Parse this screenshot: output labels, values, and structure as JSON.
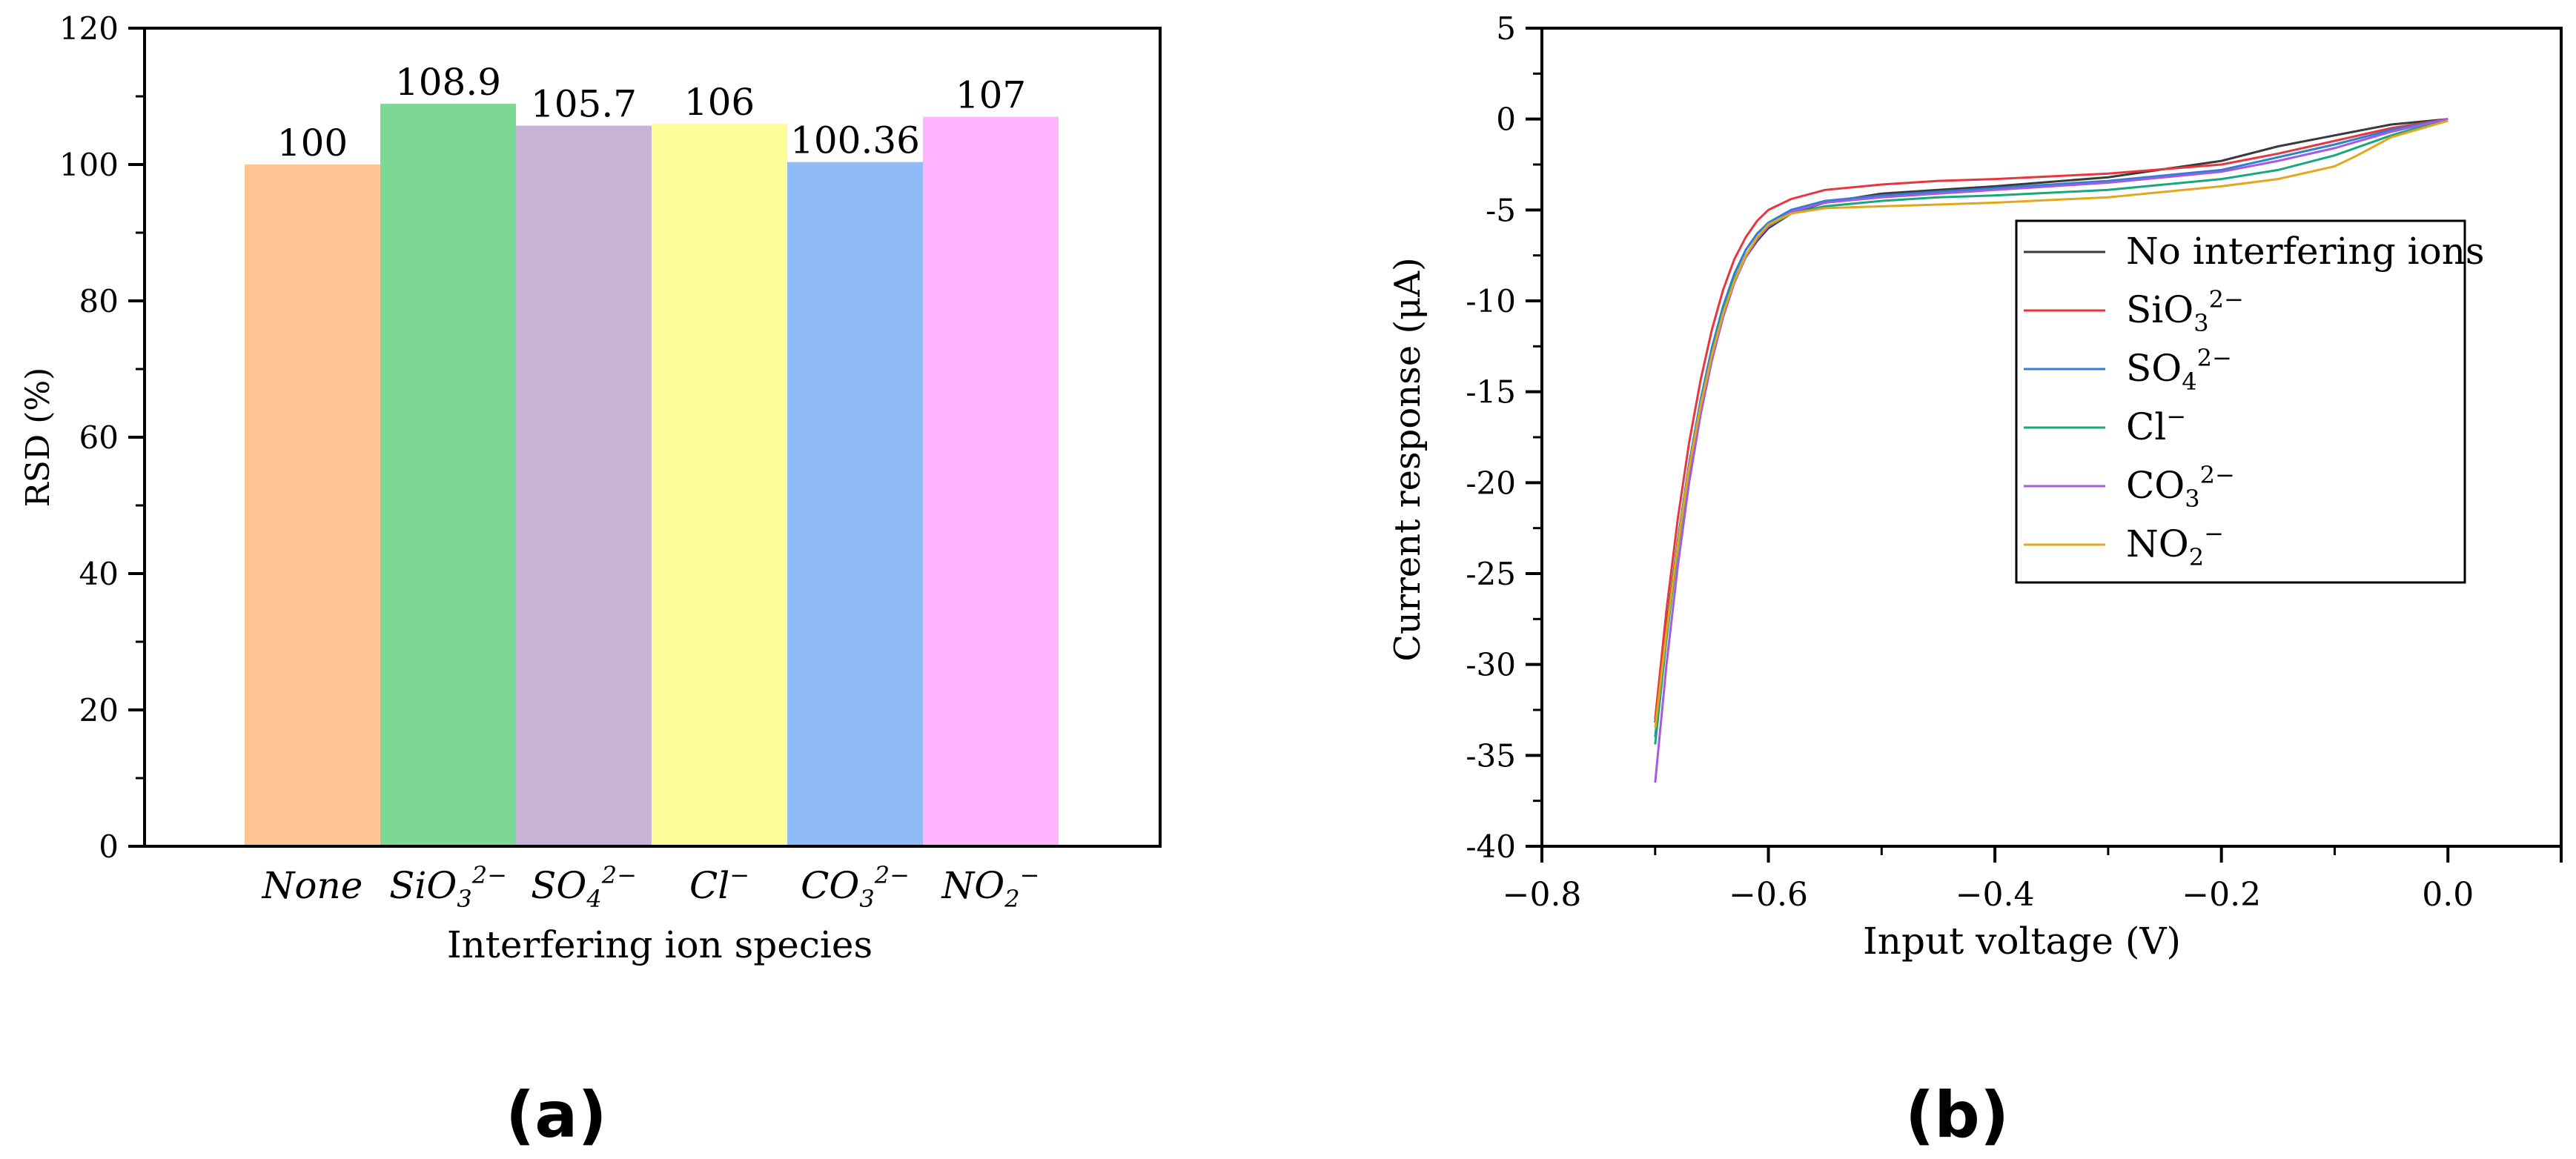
{
  "figure": {
    "panel_a_label": "(a)",
    "panel_b_label": "(b)"
  },
  "chart_data": [
    {
      "panel": "a",
      "type": "bar",
      "title": "",
      "xlabel": "Interfering ion species",
      "ylabel": "RSD (%)",
      "ylim": [
        0,
        120
      ],
      "yticks": [
        0,
        20,
        40,
        60,
        80,
        100,
        120
      ],
      "grid": false,
      "categories": [
        {
          "base": "None",
          "sub": "",
          "sup": ""
        },
        {
          "base": "SiO",
          "sub": "3",
          "sup": "2−"
        },
        {
          "base": "SO",
          "sub": "4",
          "sup": "2−"
        },
        {
          "base": "Cl",
          "sub": "",
          "sup": "−"
        },
        {
          "base": "CO",
          "sub": "3",
          "sup": "2−"
        },
        {
          "base": "NO",
          "sub": "2",
          "sup": "−"
        }
      ],
      "values": [
        100,
        108.9,
        105.7,
        106,
        100.36,
        107
      ],
      "value_labels": [
        "100",
        "108.9",
        "105.7",
        "106",
        "100.36",
        "107"
      ],
      "colors": [
        "#fec592",
        "#7dd895",
        "#c6b3d6",
        "#fefd99",
        "#8fbcf7",
        "#feb4fe"
      ]
    },
    {
      "panel": "b",
      "type": "line",
      "title": "",
      "xlabel": "Input voltage (V)",
      "ylabel": "Current response (μA)",
      "xlim": [
        -0.8,
        0.1
      ],
      "ylim": [
        -40,
        5
      ],
      "xticks": [
        -0.8,
        -0.6,
        -0.4,
        -0.2,
        0.0
      ],
      "xtick_labels": [
        "−0.8",
        "−0.6",
        "−0.4",
        "−0.2",
        "0.0"
      ],
      "yticks": [
        5,
        0,
        -5,
        -10,
        -15,
        -20,
        -25,
        -30,
        -35,
        -40
      ],
      "grid": false,
      "legend_position": "right",
      "series": [
        {
          "name": "No interfering ions",
          "base": "No interfering ions",
          "sub": "",
          "sup": "",
          "color": "#3a3a3a",
          "x": [
            -0.7,
            -0.69,
            -0.68,
            -0.67,
            -0.66,
            -0.65,
            -0.64,
            -0.63,
            -0.62,
            -0.61,
            -0.6,
            -0.58,
            -0.55,
            -0.5,
            -0.45,
            -0.4,
            -0.3,
            -0.2,
            -0.15,
            -0.1,
            -0.05,
            0.0
          ],
          "y": [
            -33.2,
            -28.0,
            -23.2,
            -19.0,
            -15.6,
            -12.8,
            -10.6,
            -8.9,
            -7.6,
            -6.7,
            -6.0,
            -5.2,
            -4.6,
            -4.1,
            -3.9,
            -3.7,
            -3.2,
            -2.3,
            -1.5,
            -0.9,
            -0.3,
            0.0
          ]
        },
        {
          "name": "SiO3 2−",
          "base": "SiO",
          "sub": "3",
          "sup": "2−",
          "color": "#e8363e",
          "x": [
            -0.7,
            -0.69,
            -0.68,
            -0.67,
            -0.66,
            -0.65,
            -0.64,
            -0.63,
            -0.62,
            -0.61,
            -0.6,
            -0.58,
            -0.55,
            -0.5,
            -0.45,
            -0.4,
            -0.3,
            -0.2,
            -0.15,
            -0.1,
            -0.05,
            0.0
          ],
          "y": [
            -33.0,
            -27.0,
            -22.0,
            -17.8,
            -14.4,
            -11.6,
            -9.4,
            -7.7,
            -6.5,
            -5.6,
            -5.0,
            -4.4,
            -3.9,
            -3.6,
            -3.4,
            -3.3,
            -3.0,
            -2.5,
            -1.9,
            -1.2,
            -0.5,
            0.0
          ]
        },
        {
          "name": "SO4 2−",
          "base": "SO",
          "sub": "4",
          "sup": "2−",
          "color": "#2c7fd2",
          "x": [
            -0.7,
            -0.69,
            -0.68,
            -0.67,
            -0.66,
            -0.65,
            -0.64,
            -0.63,
            -0.62,
            -0.61,
            -0.6,
            -0.58,
            -0.55,
            -0.5,
            -0.45,
            -0.4,
            -0.3,
            -0.2,
            -0.15,
            -0.1,
            -0.05,
            0.0
          ],
          "y": [
            -34.0,
            -28.3,
            -23.3,
            -19.0,
            -15.5,
            -12.6,
            -10.3,
            -8.5,
            -7.2,
            -6.3,
            -5.7,
            -5.0,
            -4.5,
            -4.2,
            -4.0,
            -3.8,
            -3.4,
            -2.8,
            -2.1,
            -1.4,
            -0.6,
            0.0
          ]
        },
        {
          "name": "Cl−",
          "base": "Cl",
          "sub": "",
          "sup": "−",
          "color": "#1aa77c",
          "x": [
            -0.7,
            -0.69,
            -0.68,
            -0.67,
            -0.66,
            -0.65,
            -0.64,
            -0.63,
            -0.62,
            -0.61,
            -0.6,
            -0.58,
            -0.55,
            -0.5,
            -0.45,
            -0.4,
            -0.3,
            -0.2,
            -0.15,
            -0.1,
            -0.05,
            0.0
          ],
          "y": [
            -34.4,
            -28.6,
            -23.6,
            -19.3,
            -15.8,
            -12.9,
            -10.6,
            -8.8,
            -7.5,
            -6.6,
            -5.9,
            -5.2,
            -4.8,
            -4.5,
            -4.3,
            -4.2,
            -3.9,
            -3.3,
            -2.8,
            -2.0,
            -0.9,
            0.0
          ]
        },
        {
          "name": "CO3 2−",
          "base": "CO",
          "sub": "3",
          "sup": "2−",
          "color": "#a45be0",
          "x": [
            -0.7,
            -0.69,
            -0.68,
            -0.67,
            -0.66,
            -0.65,
            -0.64,
            -0.63,
            -0.62,
            -0.61,
            -0.6,
            -0.58,
            -0.55,
            -0.5,
            -0.45,
            -0.4,
            -0.3,
            -0.2,
            -0.15,
            -0.1,
            -0.05,
            0.0
          ],
          "y": [
            -36.5,
            -30.0,
            -24.6,
            -20.0,
            -16.3,
            -13.3,
            -10.9,
            -9.0,
            -7.6,
            -6.6,
            -5.9,
            -5.1,
            -4.6,
            -4.3,
            -4.1,
            -3.9,
            -3.5,
            -2.9,
            -2.3,
            -1.6,
            -0.7,
            0.0
          ]
        },
        {
          "name": "NO2 −",
          "base": "NO",
          "sub": "2",
          "sup": "−",
          "color": "#e2a71c",
          "x": [
            -0.7,
            -0.69,
            -0.68,
            -0.67,
            -0.66,
            -0.65,
            -0.64,
            -0.63,
            -0.62,
            -0.61,
            -0.6,
            -0.58,
            -0.55,
            -0.5,
            -0.45,
            -0.4,
            -0.3,
            -0.2,
            -0.15,
            -0.1,
            -0.08,
            -0.05,
            0.0
          ],
          "y": [
            -33.5,
            -28.2,
            -23.4,
            -19.2,
            -15.8,
            -13.0,
            -10.7,
            -8.9,
            -7.5,
            -6.5,
            -5.8,
            -5.2,
            -4.9,
            -4.8,
            -4.7,
            -4.6,
            -4.3,
            -3.7,
            -3.3,
            -2.6,
            -2.0,
            -1.0,
            -0.1
          ]
        }
      ]
    }
  ]
}
